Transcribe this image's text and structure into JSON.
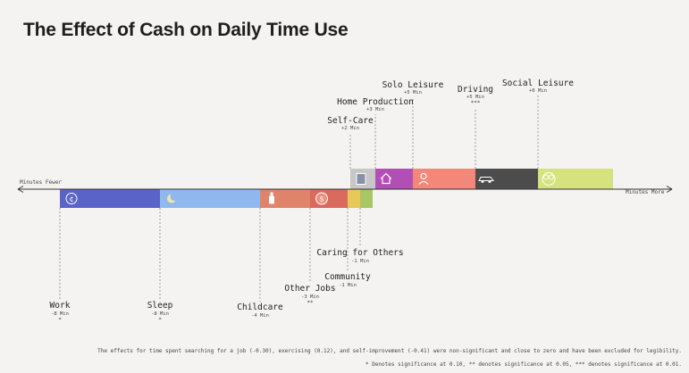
{
  "title": "The Effect of Cash on Daily Time Use",
  "axis_left_label": "Minutes Fewer",
  "axis_right_label": "Minutes More",
  "footer_note": "The effects for time spent searching for a job (-0.30), exercising (0.12), and self-improvement (-0.41) were non-significant and close to zero and have been excluded for legibility.",
  "footer_significance": "* Denotes significance at 0.10, ** denotes significance at 0.05, *** denotes significance at 0.01.",
  "chart_data": {
    "type": "bar",
    "orientation": "horizontal-stacked",
    "title": "The Effect of Cash on Daily Time Use",
    "unit": "Min",
    "negative": [
      {
        "name": "Work",
        "value": -8,
        "label": "-8 Min",
        "sig": "*",
        "color": "#5a64c8",
        "icon": "coin-icon"
      },
      {
        "name": "Sleep",
        "value": -8,
        "label": "-8 Min",
        "sig": "*",
        "color": "#8fb8ef",
        "icon": "moon-icon"
      },
      {
        "name": "Childcare",
        "value": -4,
        "label": "-4 Min",
        "sig": "",
        "color": "#e0836b",
        "icon": "baby-bottle-icon"
      },
      {
        "name": "Other Jobs",
        "value": -3,
        "label": "-3 Min",
        "sig": "**",
        "color": "#d96a5c",
        "icon": "dollar-icon"
      },
      {
        "name": "Community",
        "value": -1,
        "label": "-1 Min",
        "sig": "",
        "color": "#e8c857",
        "icon": ""
      },
      {
        "name": "Caring for Others",
        "value": -1,
        "label": "-1 Min",
        "sig": "",
        "color": "#a7c664",
        "icon": ""
      }
    ],
    "positive": [
      {
        "name": "Self-Care",
        "value": 2,
        "label": "+2 Min",
        "sig": "",
        "color": "#c7c7c7",
        "icon": "mirror-icon"
      },
      {
        "name": "Home Production",
        "value": 3,
        "label": "+3 Min",
        "sig": "",
        "color": "#b24fb4",
        "icon": "house-icon"
      },
      {
        "name": "Solo Leisure",
        "value": 5,
        "label": "+5 Min",
        "sig": "",
        "color": "#f2877a",
        "icon": "person-icon"
      },
      {
        "name": "Driving",
        "value": 5,
        "label": "+5 Min",
        "sig": "***",
        "color": "#4c4c4c",
        "icon": "car-icon"
      },
      {
        "name": "Social Leisure",
        "value": 6,
        "label": "+6 Min",
        "sig": "",
        "color": "#d5e27e",
        "icon": "people-icon"
      }
    ]
  }
}
